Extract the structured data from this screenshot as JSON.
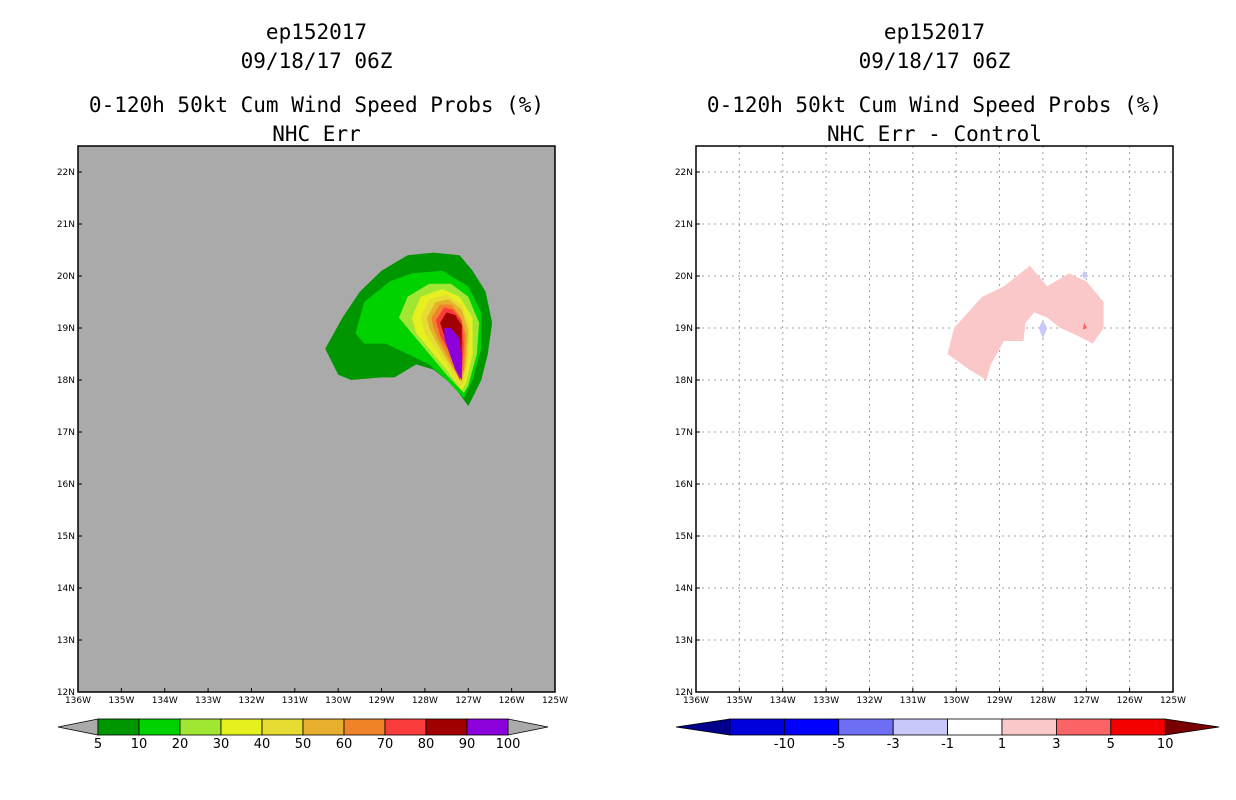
{
  "chart_data": [
    {
      "type": "filled-contour-map",
      "storm_id": "ep152017",
      "date": "09/18/17 06Z",
      "title": "0-120h 50kt Cum Wind Speed Probs (%)",
      "subtitle": "NHC Err",
      "x_ticks": [
        "136W",
        "135W",
        "134W",
        "133W",
        "132W",
        "131W",
        "130W",
        "129W",
        "128W",
        "127W",
        "126W",
        "125W"
      ],
      "y_ticks": [
        "12N",
        "13N",
        "14N",
        "15N",
        "16N",
        "17N",
        "18N",
        "19N",
        "20N",
        "21N",
        "22N"
      ],
      "xlim": [
        -136,
        -125
      ],
      "ylim": [
        12,
        22.5
      ],
      "grid": false,
      "background_color": "#aaaaaa",
      "colorbar": {
        "labels": [
          "5",
          "10",
          "20",
          "30",
          "40",
          "50",
          "60",
          "70",
          "80",
          "90",
          "100"
        ],
        "colors": [
          "#009600",
          "#00d200",
          "#a0e632",
          "#e6f01e",
          "#e6dc32",
          "#e6af2d",
          "#f08228",
          "#fa3c3c",
          "#a00000",
          "#8c00dc"
        ],
        "arrow_color": "#aaaaaa"
      },
      "contours": [
        {
          "level": 5,
          "color": "#009600",
          "lonlat": [
            [
              -130.3,
              18.6
            ],
            [
              -129.9,
              19.2
            ],
            [
              -129.5,
              19.7
            ],
            [
              -129.0,
              20.1
            ],
            [
              -128.4,
              20.4
            ],
            [
              -127.8,
              20.45
            ],
            [
              -127.2,
              20.4
            ],
            [
              -126.9,
              20.1
            ],
            [
              -126.6,
              19.7
            ],
            [
              -126.45,
              19.1
            ],
            [
              -126.55,
              18.5
            ],
            [
              -126.7,
              18.0
            ],
            [
              -127.0,
              17.5
            ],
            [
              -127.35,
              17.9
            ],
            [
              -127.8,
              18.2
            ],
            [
              -128.2,
              18.3
            ],
            [
              -128.7,
              18.05
            ],
            [
              -129.0,
              18.05
            ],
            [
              -129.7,
              18.0
            ],
            [
              -130.0,
              18.1
            ]
          ]
        },
        {
          "level": 10,
          "color": "#00d200",
          "lonlat": [
            [
              -129.6,
              18.9
            ],
            [
              -129.4,
              19.5
            ],
            [
              -128.8,
              19.9
            ],
            [
              -128.3,
              20.05
            ],
            [
              -127.6,
              20.1
            ],
            [
              -127.0,
              19.8
            ],
            [
              -126.7,
              19.3
            ],
            [
              -126.7,
              18.6
            ],
            [
              -126.9,
              18.0
            ],
            [
              -127.1,
              17.65
            ],
            [
              -127.5,
              18.0
            ],
            [
              -127.9,
              18.3
            ],
            [
              -128.4,
              18.5
            ],
            [
              -128.9,
              18.7
            ],
            [
              -129.4,
              18.7
            ]
          ]
        },
        {
          "level": 20,
          "color": "#a0e632",
          "lonlat": [
            [
              -128.6,
              19.2
            ],
            [
              -128.4,
              19.6
            ],
            [
              -127.9,
              19.85
            ],
            [
              -127.4,
              19.85
            ],
            [
              -127.0,
              19.6
            ],
            [
              -126.75,
              19.1
            ],
            [
              -126.8,
              18.5
            ],
            [
              -127.0,
              17.9
            ],
            [
              -127.1,
              17.75
            ],
            [
              -127.5,
              18.1
            ],
            [
              -127.9,
              18.5
            ],
            [
              -128.3,
              18.9
            ]
          ]
        },
        {
          "level": 30,
          "color": "#e6f01e",
          "lonlat": [
            [
              -128.3,
              19.2
            ],
            [
              -128.1,
              19.6
            ],
            [
              -127.6,
              19.75
            ],
            [
              -127.2,
              19.6
            ],
            [
              -126.9,
              19.2
            ],
            [
              -126.9,
              18.5
            ],
            [
              -127.05,
              17.95
            ],
            [
              -127.15,
              17.8
            ],
            [
              -127.5,
              18.2
            ],
            [
              -127.9,
              18.6
            ],
            [
              -128.2,
              18.9
            ]
          ]
        },
        {
          "level": 40,
          "color": "#e6dc32",
          "lonlat": [
            [
              -128.1,
              19.2
            ],
            [
              -127.9,
              19.55
            ],
            [
              -127.5,
              19.65
            ],
            [
              -127.15,
              19.45
            ],
            [
              -126.95,
              19.0
            ],
            [
              -127.0,
              18.4
            ],
            [
              -127.1,
              17.95
            ],
            [
              -127.2,
              17.85
            ],
            [
              -127.5,
              18.3
            ],
            [
              -127.8,
              18.65
            ],
            [
              -128.0,
              18.9
            ]
          ]
        },
        {
          "level": 50,
          "color": "#e6af2d",
          "lonlat": [
            [
              -127.95,
              19.2
            ],
            [
              -127.75,
              19.5
            ],
            [
              -127.45,
              19.55
            ],
            [
              -127.15,
              19.35
            ],
            [
              -127.0,
              18.95
            ],
            [
              -127.05,
              18.3
            ],
            [
              -127.15,
              17.95
            ],
            [
              -127.5,
              18.4
            ],
            [
              -127.75,
              18.75
            ],
            [
              -127.9,
              19.0
            ]
          ]
        },
        {
          "level": 60,
          "color": "#f08228",
          "lonlat": [
            [
              -127.85,
              19.2
            ],
            [
              -127.65,
              19.45
            ],
            [
              -127.4,
              19.45
            ],
            [
              -127.2,
              19.25
            ],
            [
              -127.05,
              18.85
            ],
            [
              -127.1,
              18.2
            ],
            [
              -127.2,
              18.0
            ],
            [
              -127.5,
              18.5
            ],
            [
              -127.7,
              18.8
            ],
            [
              -127.8,
              19.0
            ]
          ]
        },
        {
          "level": 70,
          "color": "#fa3c3c",
          "lonlat": [
            [
              -127.75,
              19.15
            ],
            [
              -127.55,
              19.4
            ],
            [
              -127.35,
              19.35
            ],
            [
              -127.15,
              19.15
            ],
            [
              -127.1,
              18.7
            ],
            [
              -127.15,
              18.1
            ],
            [
              -127.2,
              18.0
            ],
            [
              -127.45,
              18.55
            ],
            [
              -127.65,
              18.85
            ]
          ]
        },
        {
          "level": 80,
          "color": "#a00000",
          "lonlat": [
            [
              -127.65,
              19.1
            ],
            [
              -127.5,
              19.3
            ],
            [
              -127.3,
              19.25
            ],
            [
              -127.15,
              19.05
            ],
            [
              -127.15,
              18.3
            ],
            [
              -127.2,
              18.05
            ],
            [
              -127.4,
              18.6
            ],
            [
              -127.55,
              18.85
            ]
          ]
        },
        {
          "level": 90,
          "color": "#8c00dc",
          "lonlat": [
            [
              -127.55,
              19.0
            ],
            [
              -127.4,
              19.0
            ],
            [
              -127.2,
              18.8
            ],
            [
              -127.15,
              18.3
            ],
            [
              -127.15,
              18.0
            ],
            [
              -127.3,
              18.2
            ],
            [
              -127.45,
              18.55
            ],
            [
              -127.55,
              18.8
            ]
          ]
        }
      ]
    },
    {
      "type": "filled-contour-map",
      "storm_id": "ep152017",
      "date": "09/18/17 06Z",
      "title": "0-120h 50kt Cum Wind Speed Probs (%)",
      "subtitle": "NHC Err - Control",
      "x_ticks": [
        "136W",
        "135W",
        "134W",
        "133W",
        "132W",
        "131W",
        "130W",
        "129W",
        "128W",
        "127W",
        "126W",
        "125W"
      ],
      "y_ticks": [
        "12N",
        "13N",
        "14N",
        "15N",
        "16N",
        "17N",
        "18N",
        "19N",
        "20N",
        "21N",
        "22N"
      ],
      "xlim": [
        -136,
        -125
      ],
      "ylim": [
        12,
        22.5
      ],
      "grid": true,
      "background_color": "#ffffff",
      "colorbar": {
        "labels": [
          "-10",
          "-5",
          "-3",
          "-1",
          "1",
          "3",
          "5",
          "10"
        ],
        "colors": [
          "#0000dc",
          "#0000ff",
          "#6e6ef5",
          "#c8c8fa",
          "#ffffff",
          "#fac8c8",
          "#fa6464",
          "#f50000"
        ],
        "arrow_left_color": "#00008c",
        "arrow_right_color": "#780000"
      },
      "contours": [
        {
          "level": 1,
          "color": "#fac8c8",
          "lonlat": [
            [
              -130.2,
              18.5
            ],
            [
              -130.05,
              19.0
            ],
            [
              -129.4,
              19.6
            ],
            [
              -128.9,
              19.8
            ],
            [
              -128.3,
              20.2
            ],
            [
              -127.9,
              19.8
            ],
            [
              -127.4,
              20.05
            ],
            [
              -127.0,
              19.9
            ],
            [
              -126.6,
              19.5
            ],
            [
              -126.6,
              19.0
            ],
            [
              -126.85,
              18.7
            ],
            [
              -127.2,
              18.85
            ],
            [
              -127.6,
              19.0
            ],
            [
              -127.9,
              19.2
            ],
            [
              -128.2,
              19.3
            ],
            [
              -128.4,
              19.1
            ],
            [
              -128.45,
              18.75
            ],
            [
              -128.9,
              18.75
            ],
            [
              -129.2,
              18.3
            ],
            [
              -129.3,
              18.0
            ],
            [
              -129.7,
              18.2
            ]
          ]
        },
        {
          "level": -1,
          "color": "#c8c8fa",
          "lonlat": [
            [
              -128.0,
              19.15
            ],
            [
              -127.9,
              19.0
            ],
            [
              -128.0,
              18.8
            ],
            [
              -128.1,
              19.0
            ]
          ]
        },
        {
          "level": -1,
          "color": "#c8c8fa",
          "lonlat": [
            [
              -127.05,
              20.1
            ],
            [
              -126.95,
              20.0
            ],
            [
              -127.05,
              19.95
            ],
            [
              -127.1,
              20.02
            ]
          ]
        },
        {
          "level": 3,
          "color": "#fa6464",
          "lonlat": [
            [
              -127.05,
              19.1
            ],
            [
              -126.98,
              19.0
            ],
            [
              -127.08,
              18.97
            ]
          ]
        }
      ]
    }
  ]
}
